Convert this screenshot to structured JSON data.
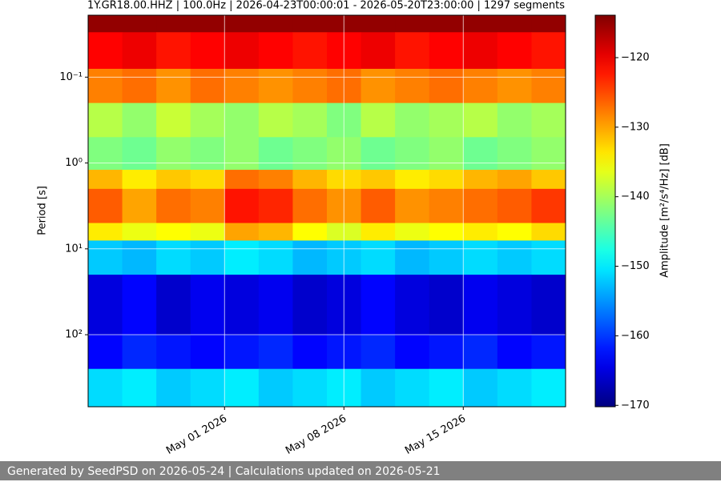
{
  "chart_data": {
    "type": "heatmap",
    "title": "1Y.GR18.00.HHZ | 100.0Hz | 2026-04-23T00:00:01 - 2026-05-20T23:00:00 | 1297 segments",
    "y_label": "Period [s]",
    "colorbar_label": "Amplitude [m²/s⁴/Hz] [dB]",
    "colormap": "jet",
    "log_y": true,
    "y_inverted": true,
    "grid": true,
    "grid_color": "#ffffff",
    "xlim": [
      "2026-04-23",
      "2026-05-21"
    ],
    "xticks": [
      {
        "value": "2026-05-01",
        "label": "May 01 2026"
      },
      {
        "value": "2026-05-08",
        "label": "May 08 2026"
      },
      {
        "value": "2026-05-15",
        "label": "May 15 2026"
      }
    ],
    "ylim": [
      0.019,
      690
    ],
    "yticks": [
      {
        "value": 0.1,
        "label": "10⁻¹"
      },
      {
        "value": 1,
        "label": "10⁰"
      },
      {
        "value": 10,
        "label": "10¹"
      },
      {
        "value": 100,
        "label": "10²"
      }
    ],
    "clim": [
      -170.2,
      -113.9
    ],
    "cticks": [
      {
        "value": -170,
        "label": "−170"
      },
      {
        "value": -160,
        "label": "−160"
      },
      {
        "value": -150,
        "label": "−150"
      },
      {
        "value": -140,
        "label": "−140"
      },
      {
        "value": -130,
        "label": "−130"
      },
      {
        "value": -120,
        "label": "−120"
      }
    ],
    "x_edges": [
      "2026-04-23",
      "2026-04-25",
      "2026-04-27",
      "2026-04-29",
      "2026-05-01",
      "2026-05-03",
      "2026-05-05",
      "2026-05-07",
      "2026-05-09",
      "2026-05-11",
      "2026-05-13",
      "2026-05-15",
      "2026-05-17",
      "2026-05-19",
      "2026-05-21"
    ],
    "y_edges": [
      0.019,
      0.03,
      0.08,
      0.2,
      0.5,
      1.2,
      2,
      5,
      8,
      20,
      100,
      250,
      690
    ],
    "z": [
      [
        -115,
        -115,
        -115,
        -115,
        -115,
        -115,
        -115,
        -115,
        -115,
        -115,
        -115,
        -115,
        -115,
        -115
      ],
      [
        -121,
        -120,
        -122,
        -121,
        -120,
        -121,
        -122,
        -121,
        -120,
        -122,
        -121,
        -120,
        -121,
        -122
      ],
      [
        -128,
        -127,
        -129,
        -127,
        -128,
        -129,
        -128,
        -127,
        -129,
        -128,
        -127,
        -128,
        -129,
        -128
      ],
      [
        -139,
        -141,
        -138,
        -140,
        -141,
        -139,
        -140,
        -142,
        -139,
        -141,
        -140,
        -139,
        -141,
        -140
      ],
      [
        -142,
        -143,
        -141,
        -142,
        -141,
        -143,
        -142,
        -141,
        -143,
        -142,
        -141,
        -143,
        -142,
        -141
      ],
      [
        -131,
        -134,
        -132,
        -133,
        -127,
        -128,
        -131,
        -133,
        -132,
        -134,
        -133,
        -131,
        -130,
        -132
      ],
      [
        -126,
        -130,
        -127,
        -128,
        -122,
        -123,
        -127,
        -129,
        -126,
        -129,
        -128,
        -127,
        -126,
        -124
      ],
      [
        -134,
        -136,
        -135,
        -136,
        -130,
        -131,
        -135,
        -137,
        -134,
        -136,
        -135,
        -134,
        -135,
        -133
      ],
      [
        -152,
        -153,
        -151,
        -152,
        -150,
        -151,
        -153,
        -152,
        -151,
        -153,
        -152,
        -151,
        -152,
        -151
      ],
      [
        -165,
        -163,
        -166,
        -164,
        -165,
        -164,
        -166,
        -165,
        -163,
        -165,
        -166,
        -164,
        -165,
        -166
      ],
      [
        -163,
        -161,
        -162,
        -163,
        -162,
        -161,
        -163,
        -162,
        -161,
        -163,
        -162,
        -161,
        -163,
        -162
      ],
      [
        -151,
        -150,
        -152,
        -151,
        -150,
        -152,
        -151,
        -150,
        -152,
        -151,
        -150,
        -152,
        -151,
        -150
      ]
    ]
  },
  "footer": "Generated by SeedPSD on 2026-05-24 | Calculations updated on 2026-05-21"
}
